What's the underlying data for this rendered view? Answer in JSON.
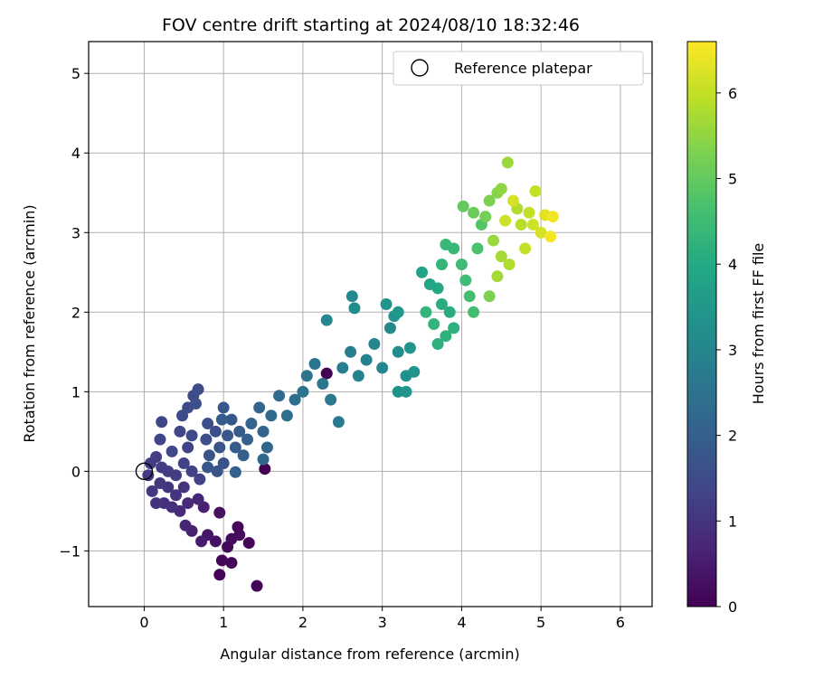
{
  "chart_data": {
    "type": "scatter",
    "title": "FOV centre drift starting at 2024/08/10 18:32:46",
    "xlabel": "Angular distance from reference (arcmin)",
    "ylabel": "Rotation from reference (arcmin)",
    "xlim": [
      -0.7,
      6.4
    ],
    "ylim": [
      -1.7,
      5.4
    ],
    "xticks": [
      "0",
      "1",
      "2",
      "3",
      "4",
      "5",
      "6"
    ],
    "yticks": [
      "−1",
      "0",
      "1",
      "2",
      "3",
      "4",
      "5"
    ],
    "grid": true,
    "legend": {
      "placement": "top-right",
      "label": "Reference platepar"
    },
    "reference_point": {
      "x": 0,
      "y": 0
    },
    "colorbar": {
      "label": "Hours from first FF file",
      "range": [
        0,
        6.6
      ],
      "ticks": [
        "0",
        "1",
        "2",
        "3",
        "4",
        "5",
        "6"
      ],
      "colormap": "viridis"
    },
    "series": [
      {
        "points": [
          {
            "x": 0.95,
            "y": -1.3,
            "c": 0.05
          },
          {
            "x": 1.42,
            "y": -1.44,
            "c": 0.05
          },
          {
            "x": 1.1,
            "y": -1.15,
            "c": 0.1
          },
          {
            "x": 0.98,
            "y": -1.12,
            "c": 0.1
          },
          {
            "x": 1.05,
            "y": -0.95,
            "c": 0.15
          },
          {
            "x": 1.32,
            "y": -0.9,
            "c": 0.1
          },
          {
            "x": 1.18,
            "y": -0.7,
            "c": 0.1
          },
          {
            "x": 1.2,
            "y": -0.8,
            "c": 0.2
          },
          {
            "x": 0.9,
            "y": -0.88,
            "c": 0.3
          },
          {
            "x": 0.95,
            "y": -0.52,
            "c": 0.3
          },
          {
            "x": 1.1,
            "y": -0.85,
            "c": 0.2
          },
          {
            "x": 0.8,
            "y": -0.8,
            "c": 0.4
          },
          {
            "x": 1.52,
            "y": 0.03,
            "c": 0.0
          },
          {
            "x": 2.3,
            "y": 1.23,
            "c": 0.0
          },
          {
            "x": 0.72,
            "y": -0.88,
            "c": 0.5
          },
          {
            "x": 0.6,
            "y": -0.75,
            "c": 0.6
          },
          {
            "x": 0.52,
            "y": -0.68,
            "c": 0.7
          },
          {
            "x": 0.75,
            "y": -0.45,
            "c": 0.6
          },
          {
            "x": 0.68,
            "y": -0.35,
            "c": 0.7
          },
          {
            "x": 0.55,
            "y": -0.4,
            "c": 0.8
          },
          {
            "x": 0.45,
            "y": -0.5,
            "c": 0.8
          },
          {
            "x": 0.35,
            "y": -0.45,
            "c": 0.9
          },
          {
            "x": 0.25,
            "y": -0.4,
            "c": 0.9
          },
          {
            "x": 0.15,
            "y": -0.4,
            "c": 1.0
          },
          {
            "x": 0.4,
            "y": -0.3,
            "c": 1.0
          },
          {
            "x": 0.5,
            "y": -0.2,
            "c": 1.0
          },
          {
            "x": 0.3,
            "y": -0.2,
            "c": 1.0
          },
          {
            "x": 0.2,
            "y": -0.15,
            "c": 1.1
          },
          {
            "x": 0.1,
            "y": -0.25,
            "c": 1.1
          },
          {
            "x": 0.05,
            "y": -0.05,
            "c": 1.1
          },
          {
            "x": 0.08,
            "y": 0.1,
            "c": 1.2
          },
          {
            "x": 0.15,
            "y": 0.18,
            "c": 1.2
          },
          {
            "x": 0.22,
            "y": 0.05,
            "c": 1.2
          },
          {
            "x": 0.3,
            "y": 0.0,
            "c": 1.2
          },
          {
            "x": 0.4,
            "y": -0.05,
            "c": 1.2
          },
          {
            "x": 0.5,
            "y": 0.1,
            "c": 1.3
          },
          {
            "x": 0.6,
            "y": 0.0,
            "c": 1.3
          },
          {
            "x": 0.7,
            "y": -0.1,
            "c": 1.3
          },
          {
            "x": 0.55,
            "y": 0.3,
            "c": 1.3
          },
          {
            "x": 0.35,
            "y": 0.25,
            "c": 1.4
          },
          {
            "x": 0.2,
            "y": 0.4,
            "c": 1.4
          },
          {
            "x": 0.22,
            "y": 0.62,
            "c": 1.4
          },
          {
            "x": 0.45,
            "y": 0.5,
            "c": 1.4
          },
          {
            "x": 0.6,
            "y": 0.45,
            "c": 1.5
          },
          {
            "x": 0.48,
            "y": 0.7,
            "c": 1.5
          },
          {
            "x": 0.55,
            "y": 0.8,
            "c": 1.5
          },
          {
            "x": 0.62,
            "y": 0.95,
            "c": 1.5
          },
          {
            "x": 0.68,
            "y": 1.03,
            "c": 1.5
          },
          {
            "x": 0.65,
            "y": 0.85,
            "c": 1.6
          },
          {
            "x": 0.8,
            "y": 0.6,
            "c": 1.6
          },
          {
            "x": 0.9,
            "y": 0.5,
            "c": 1.6
          },
          {
            "x": 0.78,
            "y": 0.4,
            "c": 1.6
          },
          {
            "x": 0.82,
            "y": 0.2,
            "c": 1.7
          },
          {
            "x": 0.95,
            "y": 0.3,
            "c": 1.7
          },
          {
            "x": 1.0,
            "y": 0.1,
            "c": 1.7
          },
          {
            "x": 0.92,
            "y": 0.0,
            "c": 1.7
          },
          {
            "x": 0.8,
            "y": 0.05,
            "c": 1.8
          },
          {
            "x": 1.05,
            "y": 0.45,
            "c": 1.8
          },
          {
            "x": 1.1,
            "y": 0.65,
            "c": 1.8
          },
          {
            "x": 1.0,
            "y": 0.8,
            "c": 1.8
          },
          {
            "x": 0.98,
            "y": 0.65,
            "c": 1.9
          },
          {
            "x": 1.15,
            "y": 0.3,
            "c": 1.9
          },
          {
            "x": 1.2,
            "y": 0.5,
            "c": 1.9
          },
          {
            "x": 1.15,
            "y": -0.01,
            "c": 2.0
          },
          {
            "x": 1.25,
            "y": 0.2,
            "c": 2.0
          },
          {
            "x": 1.3,
            "y": 0.4,
            "c": 2.0
          },
          {
            "x": 1.35,
            "y": 0.6,
            "c": 2.1
          },
          {
            "x": 1.45,
            "y": 0.8,
            "c": 2.1
          },
          {
            "x": 1.5,
            "y": 0.5,
            "c": 2.1
          },
          {
            "x": 1.55,
            "y": 0.3,
            "c": 2.2
          },
          {
            "x": 1.5,
            "y": 0.15,
            "c": 2.2
          },
          {
            "x": 1.6,
            "y": 0.7,
            "c": 2.3
          },
          {
            "x": 1.7,
            "y": 0.95,
            "c": 2.3
          },
          {
            "x": 1.8,
            "y": 0.7,
            "c": 2.4
          },
          {
            "x": 1.9,
            "y": 0.9,
            "c": 2.4
          },
          {
            "x": 2.0,
            "y": 1.0,
            "c": 2.5
          },
          {
            "x": 2.05,
            "y": 1.2,
            "c": 2.5
          },
          {
            "x": 2.15,
            "y": 1.35,
            "c": 2.6
          },
          {
            "x": 2.25,
            "y": 1.1,
            "c": 2.6
          },
          {
            "x": 2.35,
            "y": 0.9,
            "c": 2.7
          },
          {
            "x": 2.45,
            "y": 0.62,
            "c": 2.7
          },
          {
            "x": 2.5,
            "y": 1.3,
            "c": 2.8
          },
          {
            "x": 2.6,
            "y": 1.5,
            "c": 2.8
          },
          {
            "x": 2.7,
            "y": 1.2,
            "c": 2.9
          },
          {
            "x": 2.8,
            "y": 1.4,
            "c": 2.9
          },
          {
            "x": 2.9,
            "y": 1.6,
            "c": 3.0
          },
          {
            "x": 3.0,
            "y": 1.3,
            "c": 3.0
          },
          {
            "x": 3.1,
            "y": 1.8,
            "c": 3.1
          },
          {
            "x": 3.2,
            "y": 1.5,
            "c": 3.2
          },
          {
            "x": 3.3,
            "y": 1.2,
            "c": 3.3
          },
          {
            "x": 3.2,
            "y": 1.0,
            "c": 3.3
          },
          {
            "x": 3.35,
            "y": 1.55,
            "c": 3.4
          },
          {
            "x": 3.4,
            "y": 1.25,
            "c": 3.4
          },
          {
            "x": 3.3,
            "y": 1.0,
            "c": 3.4
          },
          {
            "x": 2.65,
            "y": 2.05,
            "c": 3.2
          },
          {
            "x": 2.62,
            "y": 2.2,
            "c": 3.1
          },
          {
            "x": 2.3,
            "y": 1.9,
            "c": 3.0
          },
          {
            "x": 3.05,
            "y": 2.1,
            "c": 3.4
          },
          {
            "x": 3.15,
            "y": 1.95,
            "c": 3.4
          },
          {
            "x": 3.2,
            "y": 2.0,
            "c": 3.5
          },
          {
            "x": 3.5,
            "y": 2.5,
            "c": 3.8
          },
          {
            "x": 3.6,
            "y": 2.35,
            "c": 3.9
          },
          {
            "x": 3.7,
            "y": 2.3,
            "c": 4.0
          },
          {
            "x": 3.75,
            "y": 2.1,
            "c": 4.1
          },
          {
            "x": 3.85,
            "y": 2.0,
            "c": 4.1
          },
          {
            "x": 3.9,
            "y": 1.8,
            "c": 4.2
          },
          {
            "x": 3.8,
            "y": 1.7,
            "c": 4.2
          },
          {
            "x": 3.7,
            "y": 1.6,
            "c": 4.2
          },
          {
            "x": 3.65,
            "y": 1.85,
            "c": 4.3
          },
          {
            "x": 3.55,
            "y": 2.0,
            "c": 4.3
          },
          {
            "x": 3.75,
            "y": 2.6,
            "c": 4.3
          },
          {
            "x": 3.8,
            "y": 2.85,
            "c": 4.4
          },
          {
            "x": 3.9,
            "y": 2.8,
            "c": 4.4
          },
          {
            "x": 4.0,
            "y": 2.6,
            "c": 4.5
          },
          {
            "x": 4.05,
            "y": 2.4,
            "c": 4.5
          },
          {
            "x": 4.1,
            "y": 2.2,
            "c": 4.6
          },
          {
            "x": 4.15,
            "y": 2.0,
            "c": 4.6
          },
          {
            "x": 4.2,
            "y": 2.8,
            "c": 4.7
          },
          {
            "x": 4.25,
            "y": 3.1,
            "c": 4.8
          },
          {
            "x": 4.02,
            "y": 3.33,
            "c": 5.0
          },
          {
            "x": 4.15,
            "y": 3.25,
            "c": 5.1
          },
          {
            "x": 4.3,
            "y": 3.2,
            "c": 5.2
          },
          {
            "x": 4.35,
            "y": 3.4,
            "c": 5.3
          },
          {
            "x": 4.45,
            "y": 3.5,
            "c": 5.4
          },
          {
            "x": 4.5,
            "y": 3.55,
            "c": 5.5
          },
          {
            "x": 4.58,
            "y": 3.88,
            "c": 5.6
          },
          {
            "x": 4.4,
            "y": 2.9,
            "c": 5.6
          },
          {
            "x": 4.5,
            "y": 2.7,
            "c": 5.7
          },
          {
            "x": 4.6,
            "y": 2.6,
            "c": 5.8
          },
          {
            "x": 4.7,
            "y": 3.3,
            "c": 5.8
          },
          {
            "x": 4.75,
            "y": 3.1,
            "c": 5.9
          },
          {
            "x": 4.8,
            "y": 2.8,
            "c": 6.0
          },
          {
            "x": 4.85,
            "y": 3.25,
            "c": 6.0
          },
          {
            "x": 4.9,
            "y": 3.1,
            "c": 6.1
          },
          {
            "x": 4.93,
            "y": 3.52,
            "c": 6.0
          },
          {
            "x": 5.0,
            "y": 3.0,
            "c": 6.2
          },
          {
            "x": 5.05,
            "y": 3.22,
            "c": 6.3
          },
          {
            "x": 5.12,
            "y": 2.95,
            "c": 6.5
          },
          {
            "x": 5.15,
            "y": 3.2,
            "c": 6.5
          },
          {
            "x": 4.65,
            "y": 3.4,
            "c": 6.2
          },
          {
            "x": 4.55,
            "y": 3.15,
            "c": 6.1
          },
          {
            "x": 4.45,
            "y": 2.45,
            "c": 5.7
          },
          {
            "x": 4.35,
            "y": 2.2,
            "c": 5.3
          }
        ]
      }
    ]
  }
}
